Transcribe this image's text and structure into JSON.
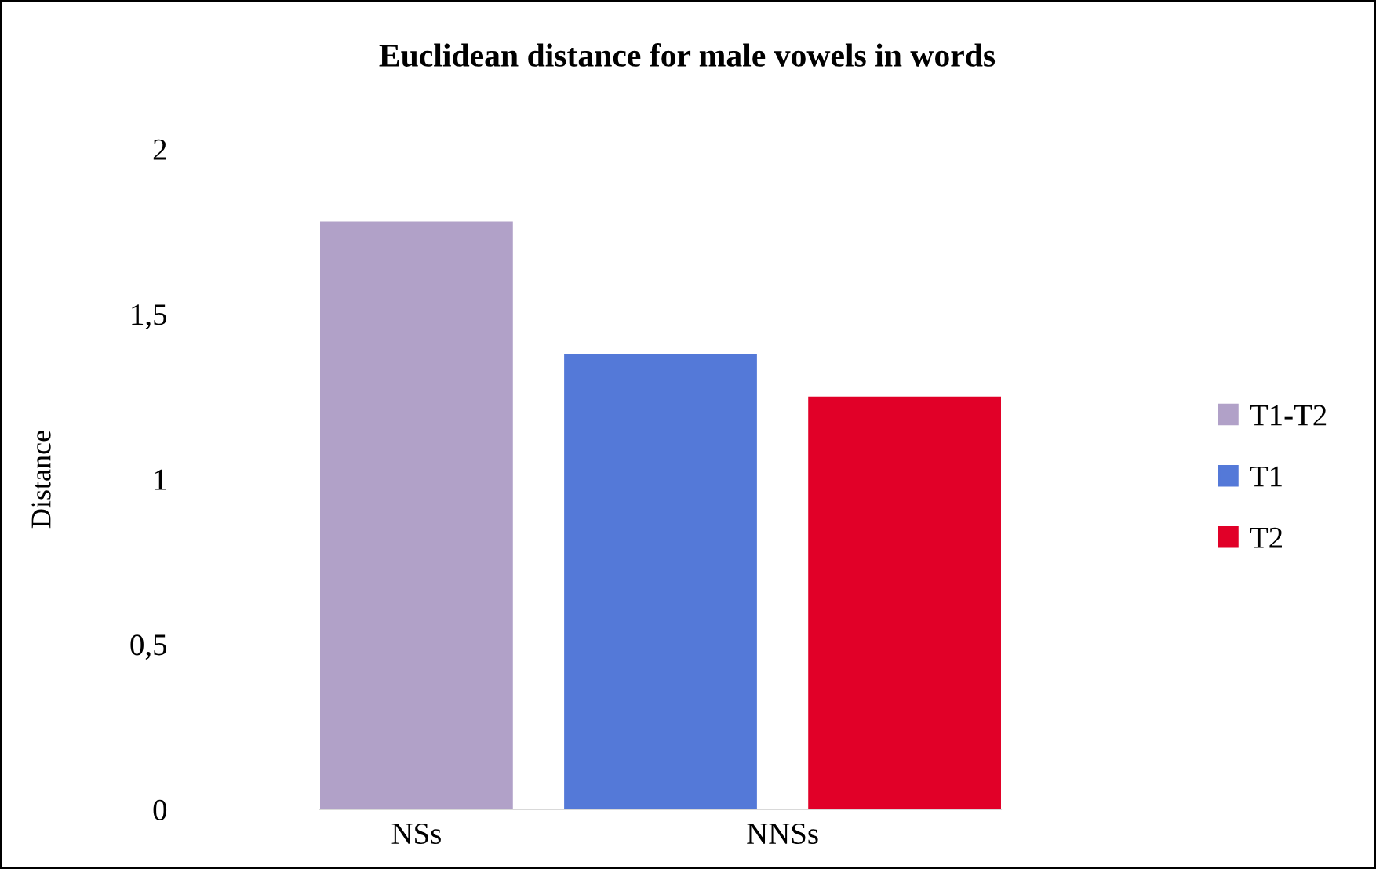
{
  "chart_data": {
    "type": "bar",
    "title": "Euclidean distance for male vowels in words",
    "ylabel": "Distance",
    "categories": [
      "NSs",
      "NNSs"
    ],
    "series": [
      {
        "name": "T1-T2",
        "color": "#b1a1c8",
        "values": [
          1.78,
          null
        ]
      },
      {
        "name": "T1",
        "color": "#5479d8",
        "values": [
          null,
          1.38
        ]
      },
      {
        "name": "T2",
        "color": "#e10028",
        "values": [
          null,
          1.25
        ]
      }
    ],
    "ylim": [
      0,
      2
    ],
    "yticks": [
      0,
      {
        "value": 0.5,
        "label": "0,5"
      },
      1,
      {
        "value": 1.5,
        "label": "1,5"
      },
      2
    ],
    "grid": false,
    "legend": "right"
  }
}
